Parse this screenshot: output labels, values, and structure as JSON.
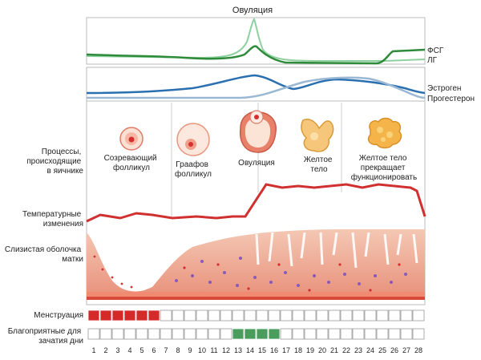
{
  "title": "Овуляция",
  "hormones": {
    "fsh": "ФСГ",
    "lh": "ЛГ",
    "estrogen": "Эстроген",
    "progesterone": "Прогестерон"
  },
  "ovary": {
    "label_lines": [
      "Процессы,",
      "происходящие",
      "в яичнике"
    ],
    "stages": [
      {
        "lines": [
          "Созревающий",
          "фолликул"
        ]
      },
      {
        "lines": [
          "Граафов",
          "фолликул"
        ]
      },
      {
        "lines": [
          "Овуляция"
        ]
      },
      {
        "lines": [
          "Желтое",
          "тело"
        ]
      },
      {
        "lines": [
          "Желтое тело",
          "прекращает",
          "функционировать"
        ]
      }
    ]
  },
  "temperature": {
    "label_lines": [
      "Температурные",
      "изменения"
    ]
  },
  "mucosa": {
    "label_lines": [
      "Слизистая оболочка",
      "матки"
    ]
  },
  "menstruation": {
    "label": "Менструация",
    "days": [
      1,
      2,
      3,
      4,
      5,
      6
    ],
    "color": "#d42a2a"
  },
  "fertile": {
    "label_lines": [
      "Благоприятные для",
      "зачатия дни"
    ],
    "days": [
      13,
      14,
      15,
      16
    ],
    "color": "#4a9d5c"
  },
  "days": [
    "1",
    "2",
    "3",
    "4",
    "5",
    "6",
    "7",
    "8",
    "9",
    "10",
    "11",
    "12",
    "13",
    "14",
    "15",
    "16",
    "17",
    "18",
    "19",
    "20",
    "21",
    "22",
    "23",
    "24",
    "25",
    "26",
    "27",
    "28"
  ],
  "colors": {
    "fsh": "#2e8b3a",
    "lh": "#8fd0a0",
    "estrogen": "#2a6fb0",
    "progesterone": "#9ab8d4",
    "temperature": "#d03030"
  }
}
